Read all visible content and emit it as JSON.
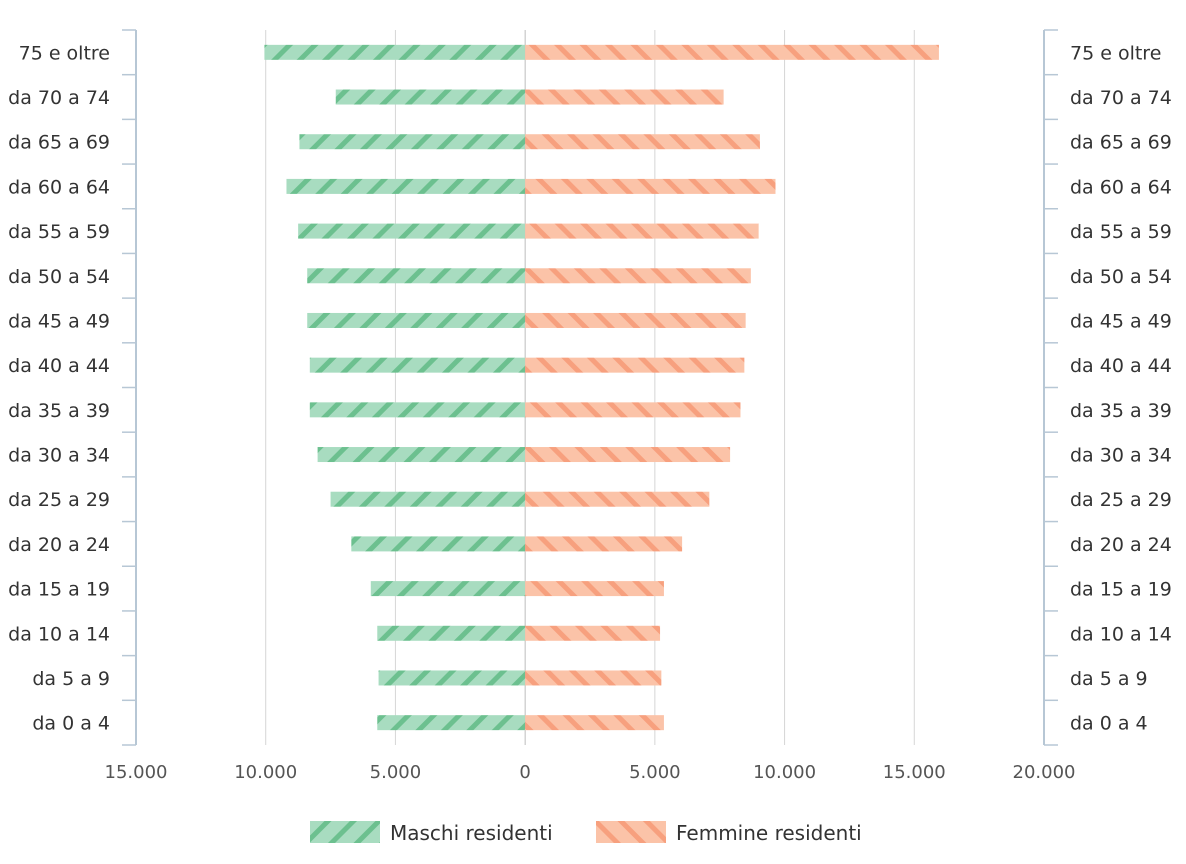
{
  "chart_data": {
    "type": "bar",
    "orientation": "horizontal",
    "layout": "population-pyramid",
    "categories": [
      "75 e oltre",
      "da 70 a 74",
      "da 65 a 69",
      "da 60 a 64",
      "da 55 a 59",
      "da 50 a 54",
      "da 45 a 49",
      "da 40 a 44",
      "da 35 a 39",
      "da 30 a 34",
      "da 25 a 29",
      "da 20 a 24",
      "da 15 a 19",
      "da 10 a 14",
      "da 5 a 9",
      "da 0 a 4"
    ],
    "series": [
      {
        "name": "Maschi residenti",
        "side": "left",
        "color": "#a8dcc0",
        "stripe_color": "#6cc08f",
        "values": [
          10050,
          7300,
          8700,
          9200,
          8750,
          8400,
          8400,
          8300,
          8300,
          8000,
          7500,
          6700,
          5950,
          5700,
          5650,
          5700
        ]
      },
      {
        "name": "Femmine residenti",
        "side": "right",
        "color": "#fbc3a8",
        "stripe_color": "#f7a07e",
        "values": [
          15950,
          7650,
          9050,
          9650,
          9000,
          8700,
          8500,
          8450,
          8300,
          7900,
          7100,
          6050,
          5350,
          5200,
          5250,
          5350
        ]
      }
    ],
    "xlim": [
      -15000,
      20000
    ],
    "xticks": [
      -15000,
      -10000,
      -5000,
      0,
      5000,
      10000,
      15000,
      20000
    ],
    "tick_labels": [
      "15.000",
      "10.000",
      "5.000",
      "0",
      "5.000",
      "10.000",
      "15.000",
      "20.000"
    ],
    "grid": true,
    "legend_position": "bottom-center",
    "title": "",
    "xlabel": "",
    "ylabel": ""
  },
  "colors": {
    "axis": "#b7c7d5",
    "grid": "#d6d6d6"
  }
}
